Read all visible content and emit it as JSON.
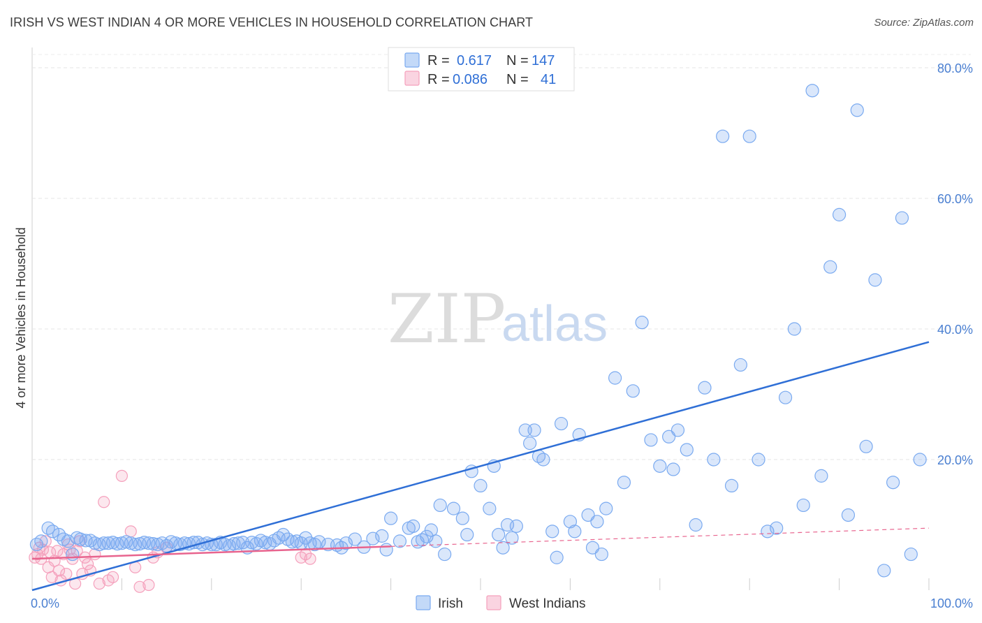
{
  "title": "IRISH VS WEST INDIAN 4 OR MORE VEHICLES IN HOUSEHOLD CORRELATION CHART",
  "source": "Source: ZipAtlas.com",
  "watermark": {
    "zip": "ZIP",
    "atlas": "atlas"
  },
  "legend": {
    "rows": [
      {
        "r_label": "R =",
        "r_value": "0.617",
        "n_label": "N =",
        "n_value": "147",
        "color": "#7aaaf0"
      },
      {
        "r_label": "R =",
        "r_value": "0.086",
        "n_label": "N =",
        "n_value": "41",
        "color": "#f5a0bc"
      }
    ]
  },
  "bottom_legend": [
    "Irish",
    "West Indians"
  ],
  "chart_data": {
    "type": "scatter",
    "title": "IRISH VS WEST INDIAN 4 OR MORE VEHICLES IN HOUSEHOLD CORRELATION CHART",
    "xlabel": "",
    "ylabel": "4 or more Vehicles in Household",
    "xlim": [
      0,
      100
    ],
    "ylim": [
      0,
      80
    ],
    "x_tick_labels": [
      "0.0%",
      "100.0%"
    ],
    "y_ticks": [
      20,
      40,
      60,
      80
    ],
    "y_tick_labels": [
      "20.0%",
      "40.0%",
      "60.0%",
      "80.0%"
    ],
    "grid": true,
    "legend_position": "top-center",
    "series": [
      {
        "name": "Irish",
        "color": "#7aaaf0",
        "trend": {
          "x": [
            0,
            100
          ],
          "y": [
            0,
            38
          ]
        },
        "points": [
          [
            0.5,
            7
          ],
          [
            1,
            7.5
          ],
          [
            1.8,
            9.5
          ],
          [
            2.3,
            9
          ],
          [
            3,
            8.5
          ],
          [
            3.5,
            7.8
          ],
          [
            4,
            7.5
          ],
          [
            4.5,
            5.5
          ],
          [
            5,
            8
          ],
          [
            5.4,
            7.8
          ],
          [
            6,
            7.6
          ],
          [
            6.5,
            7.6
          ],
          [
            7,
            7.2
          ],
          [
            7.5,
            7
          ],
          [
            8,
            7.2
          ],
          [
            8.5,
            7.2
          ],
          [
            9,
            7.3
          ],
          [
            9.5,
            7.1
          ],
          [
            10,
            7.2
          ],
          [
            10.5,
            7.4
          ],
          [
            11,
            7.2
          ],
          [
            11.5,
            7
          ],
          [
            12,
            7.1
          ],
          [
            12.5,
            7.3
          ],
          [
            13,
            7.2
          ],
          [
            13.5,
            7.1
          ],
          [
            14,
            7
          ],
          [
            14.5,
            7.2
          ],
          [
            15,
            6.8
          ],
          [
            15.5,
            7.4
          ],
          [
            16,
            7.2
          ],
          [
            16.5,
            7
          ],
          [
            17,
            7.2
          ],
          [
            17.5,
            7.1
          ],
          [
            18,
            7.3
          ],
          [
            18.5,
            7.3
          ],
          [
            19,
            7
          ],
          [
            19.5,
            7.2
          ],
          [
            20,
            7
          ],
          [
            20.5,
            7
          ],
          [
            21,
            7.3
          ],
          [
            21.5,
            7
          ],
          [
            22,
            6.8
          ],
          [
            22.5,
            7.1
          ],
          [
            23,
            7.2
          ],
          [
            23.5,
            7.3
          ],
          [
            24,
            6.5
          ],
          [
            24.5,
            7.3
          ],
          [
            25,
            7.1
          ],
          [
            25.5,
            7.6
          ],
          [
            26,
            7.3
          ],
          [
            26.5,
            7.1
          ],
          [
            27,
            7.6
          ],
          [
            27.5,
            8
          ],
          [
            28,
            8.5
          ],
          [
            28.5,
            7.8
          ],
          [
            29,
            7.4
          ],
          [
            29.5,
            7.5
          ],
          [
            30,
            7.2
          ],
          [
            30.5,
            8
          ],
          [
            31,
            7.2
          ],
          [
            31.5,
            7
          ],
          [
            32,
            7.4
          ],
          [
            33,
            7
          ],
          [
            34,
            6.9
          ],
          [
            34.5,
            6.5
          ],
          [
            35,
            7.2
          ],
          [
            36,
            7.8
          ],
          [
            37,
            6.6
          ],
          [
            38,
            7.9
          ],
          [
            39,
            8.3
          ],
          [
            39.5,
            6.2
          ],
          [
            40,
            11
          ],
          [
            41,
            7.5
          ],
          [
            42,
            9.5
          ],
          [
            42.5,
            9.8
          ],
          [
            43,
            7.4
          ],
          [
            43.5,
            7.7
          ],
          [
            44,
            8.2
          ],
          [
            44.5,
            9.2
          ],
          [
            45,
            7.5
          ],
          [
            45.5,
            13
          ],
          [
            46,
            5.5
          ],
          [
            47,
            12.5
          ],
          [
            48,
            11
          ],
          [
            48.5,
            8.5
          ],
          [
            49,
            18.2
          ],
          [
            50,
            16
          ],
          [
            51,
            12.5
          ],
          [
            51.5,
            19
          ],
          [
            52,
            8.5
          ],
          [
            52.5,
            6.5
          ],
          [
            53,
            10
          ],
          [
            53.5,
            8
          ],
          [
            54,
            9.8
          ],
          [
            55,
            24.5
          ],
          [
            55.5,
            22.5
          ],
          [
            56,
            24.5
          ],
          [
            56.5,
            20.5
          ],
          [
            57,
            20
          ],
          [
            58,
            9
          ],
          [
            58.5,
            5
          ],
          [
            59,
            25.5
          ],
          [
            60,
            10.5
          ],
          [
            60.5,
            9
          ],
          [
            61,
            23.8
          ],
          [
            62,
            11.5
          ],
          [
            62.5,
            6.5
          ],
          [
            63,
            10.5
          ],
          [
            63.5,
            5.5
          ],
          [
            64,
            12.5
          ],
          [
            65,
            32.5
          ],
          [
            66,
            16.5
          ],
          [
            67,
            30.5
          ],
          [
            68,
            41
          ],
          [
            69,
            23
          ],
          [
            70,
            19
          ],
          [
            71,
            23.5
          ],
          [
            71.5,
            18.5
          ],
          [
            72,
            24.5
          ],
          [
            73,
            21.5
          ],
          [
            74,
            10
          ],
          [
            75,
            31
          ],
          [
            76,
            20
          ],
          [
            77,
            69.5
          ],
          [
            78,
            16
          ],
          [
            79,
            34.5
          ],
          [
            80,
            69.5
          ],
          [
            81,
            20
          ],
          [
            82,
            9
          ],
          [
            83,
            9.5
          ],
          [
            84,
            29.5
          ],
          [
            85,
            40
          ],
          [
            86,
            13
          ],
          [
            87,
            76.5
          ],
          [
            88,
            17.5
          ],
          [
            89,
            49.5
          ],
          [
            90,
            57.5
          ],
          [
            91,
            11.5
          ],
          [
            92,
            73.5
          ],
          [
            93,
            22
          ],
          [
            94,
            47.5
          ],
          [
            95,
            3
          ],
          [
            96,
            16.5
          ],
          [
            97,
            57
          ],
          [
            98,
            5.5
          ],
          [
            99,
            20
          ]
        ]
      },
      {
        "name": "West Indians",
        "color": "#f5a0bc",
        "trend": {
          "x": [
            0,
            40
          ],
          "y": [
            4.8,
            6.7
          ],
          "dashed_extension": {
            "x": [
              40,
              100
            ],
            "y": [
              6.7,
              9.5
            ]
          }
        },
        "points": [
          [
            0.3,
            5
          ],
          [
            0.6,
            5.5
          ],
          [
            0.8,
            6.5
          ],
          [
            1,
            4.8
          ],
          [
            1.2,
            6.2
          ],
          [
            1.5,
            7.5
          ],
          [
            1.8,
            3.5
          ],
          [
            2,
            5.8
          ],
          [
            2.2,
            2
          ],
          [
            2.5,
            4.5
          ],
          [
            2.8,
            6
          ],
          [
            3,
            3
          ],
          [
            3.2,
            1.5
          ],
          [
            3.5,
            5.5
          ],
          [
            3.8,
            2.5
          ],
          [
            4,
            7
          ],
          [
            4.2,
            6.2
          ],
          [
            4.5,
            4.8
          ],
          [
            4.8,
            1
          ],
          [
            5,
            6
          ],
          [
            5.3,
            7.5
          ],
          [
            5.6,
            2.5
          ],
          [
            5.9,
            5
          ],
          [
            6.2,
            4
          ],
          [
            6.5,
            3
          ],
          [
            7,
            5.5
          ],
          [
            7.5,
            1
          ],
          [
            8,
            13.5
          ],
          [
            8.5,
            1.5
          ],
          [
            9,
            2
          ],
          [
            10,
            17.5
          ],
          [
            11,
            9
          ],
          [
            11.5,
            3.5
          ],
          [
            12,
            0.5
          ],
          [
            13,
            0.8
          ],
          [
            13.5,
            5
          ],
          [
            14,
            5.8
          ],
          [
            15,
            6.5
          ],
          [
            30,
            5
          ],
          [
            30.5,
            5.5
          ],
          [
            31,
            4.8
          ]
        ]
      }
    ]
  }
}
